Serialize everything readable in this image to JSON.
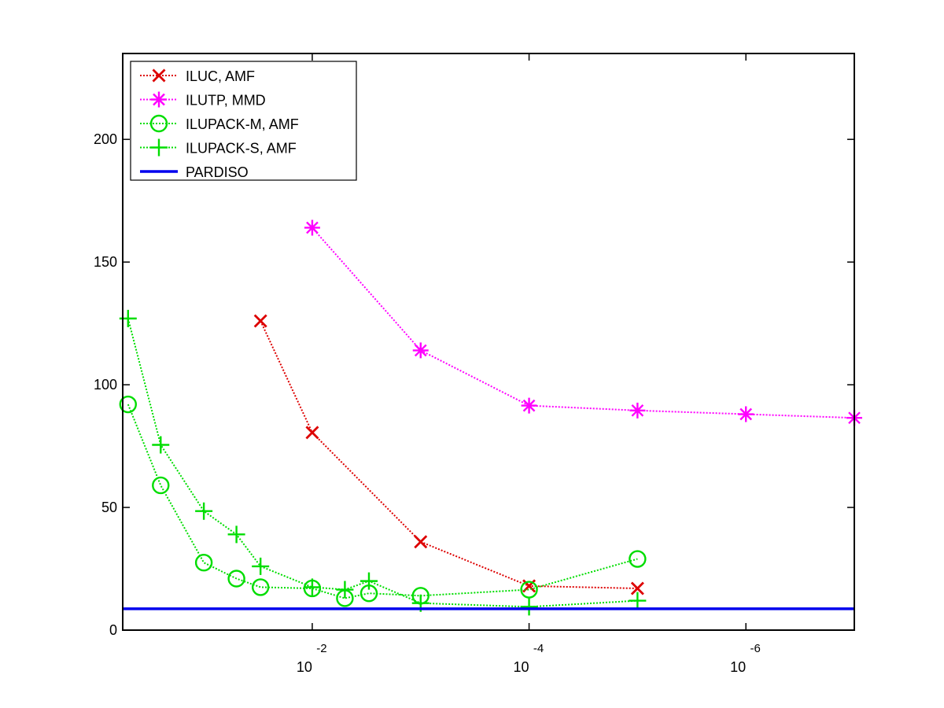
{
  "chart_data": {
    "type": "line",
    "title": "",
    "xlabel": "",
    "ylabel": "",
    "x_scale": "log-reversed",
    "xlim": [
      0.56,
      1e-07
    ],
    "ylim": [
      0,
      235
    ],
    "grid": false,
    "legend_position": "top-left",
    "x_ticks": [
      {
        "value": 0.01,
        "base": "10",
        "exponent": "-2"
      },
      {
        "value": 0.0001,
        "base": "10",
        "exponent": "-4"
      },
      {
        "value": 1e-06,
        "base": "10",
        "exponent": "-6"
      }
    ],
    "y_ticks": [
      {
        "value": 0,
        "label": "0"
      },
      {
        "value": 50,
        "label": "50"
      },
      {
        "value": 100,
        "label": "100"
      },
      {
        "value": 150,
        "label": "150"
      },
      {
        "value": 200,
        "label": "200"
      }
    ],
    "series": [
      {
        "name": "ILUC, AMF",
        "color": "#dd0000",
        "marker": "x",
        "line": "dotted",
        "x": [
          0.03,
          0.01,
          0.001,
          0.0001,
          1e-05
        ],
        "y": [
          126,
          80.5,
          36,
          18,
          17
        ]
      },
      {
        "name": "ILUTP, MMD",
        "color": "#ff00ff",
        "marker": "asterisk",
        "line": "dotted",
        "x": [
          0.01,
          0.001,
          0.0001,
          1e-05,
          1e-06,
          1e-07
        ],
        "y": [
          164,
          114,
          91.5,
          89.5,
          88,
          86.5
        ]
      },
      {
        "name": "ILUPACK-M, AMF",
        "color": "#00dd00",
        "marker": "circle",
        "line": "dotted",
        "x": [
          0.5,
          0.25,
          0.1,
          0.05,
          0.03,
          0.01,
          0.005,
          0.003,
          0.001,
          0.0001,
          1e-05
        ],
        "y": [
          92,
          59,
          27.5,
          21,
          17.5,
          17,
          13,
          15,
          14,
          16.5,
          29
        ]
      },
      {
        "name": "ILUPACK-S, AMF",
        "color": "#00dd00",
        "marker": "plus",
        "line": "dotted",
        "x": [
          0.5,
          0.25,
          0.1,
          0.05,
          0.03,
          0.01,
          0.005,
          0.003,
          0.001,
          0.0001,
          1e-05
        ],
        "y": [
          127,
          75.5,
          48.5,
          39,
          26,
          17.5,
          16.5,
          20,
          11,
          9.5,
          12
        ]
      },
      {
        "name": "PARDISO",
        "color": "#0000ee",
        "marker": "none",
        "line": "solid",
        "x": [
          0.56,
          1e-07
        ],
        "y": [
          8.7,
          8.7
        ]
      }
    ]
  }
}
